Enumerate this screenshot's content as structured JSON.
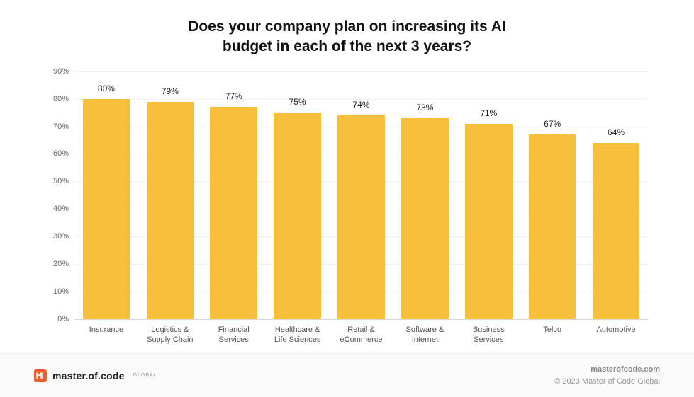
{
  "title_line1": "Does your company plan on increasing its AI",
  "title_line2": "budget in each of the next 3 years?",
  "chart": {
    "type": "bar",
    "ymin": 0,
    "ymax": 90,
    "ytick_step": 10,
    "ytick_suffix": "%",
    "grid_color": "#f0f0f0",
    "baseline_color": "#d9d9d9",
    "bar_color": "#f8bf3c",
    "background_color": "#ffffff",
    "value_label_fontsize": 12,
    "axis_label_fontsize": 11,
    "categories": [
      "Insurance",
      "Logistics &\nSupply Chain",
      "Financial\nServices",
      "Healthcare &\nLife Sciences",
      "Retail &\neCommerce",
      "Software &\nInternet",
      "Business\nServices",
      "Telco",
      "Automotive"
    ],
    "values": [
      80,
      79,
      77,
      75,
      74,
      73,
      71,
      67,
      64
    ]
  },
  "footer": {
    "brand_text": "master.of.code",
    "brand_sub": "GLOBAL",
    "logo_bg": "#f15a29",
    "logo_fg": "#ffffff",
    "site": "masterofcode.com",
    "copyright": "© 2023 Master of Code Global"
  }
}
